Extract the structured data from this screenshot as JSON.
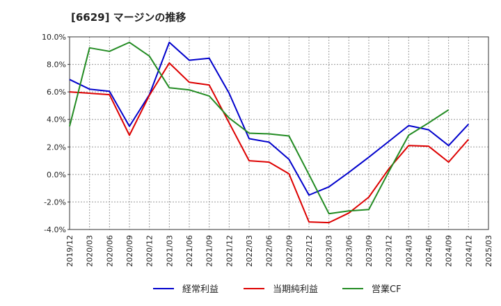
{
  "title": "[6629]  マージンの推移",
  "chart_data": {
    "type": "line",
    "title": "[6629]  マージンの推移",
    "x": [
      "2019/12",
      "2020/03",
      "2020/06",
      "2020/09",
      "2020/12",
      "2021/03",
      "2021/06",
      "2021/09",
      "2021/12",
      "2022/03",
      "2022/06",
      "2022/09",
      "2022/12",
      "2023/03",
      "2023/06",
      "2023/09",
      "2023/12",
      "2024/03",
      "2024/06",
      "2024/09",
      "2024/12",
      "2025/03"
    ],
    "ylim": [
      -4.0,
      10.0
    ],
    "yticks": [
      -4.0,
      -2.0,
      0.0,
      2.0,
      4.0,
      6.0,
      8.0,
      10.0
    ],
    "ytick_labels": [
      "-4.0%",
      "-2.0%",
      "0.0%",
      "2.0%",
      "4.0%",
      "6.0%",
      "8.0%",
      "10.0%"
    ],
    "grid": true,
    "legend_position": "bottom",
    "series": [
      {
        "name": "経常利益",
        "color": "#0000cc",
        "values": [
          6.9,
          6.2,
          6.05,
          3.5,
          5.8,
          9.6,
          8.3,
          8.45,
          5.9,
          2.6,
          2.35,
          1.1,
          -1.5,
          -0.9,
          0.15,
          1.25,
          2.4,
          3.55,
          3.25,
          2.1,
          3.65,
          null
        ]
      },
      {
        "name": "当期純利益",
        "color": "#dd0000",
        "values": [
          6.0,
          5.9,
          5.8,
          2.85,
          5.75,
          8.1,
          6.7,
          6.5,
          3.75,
          1.0,
          0.9,
          0.05,
          -3.45,
          -3.5,
          -2.8,
          -1.65,
          0.4,
          2.1,
          2.05,
          0.9,
          2.55,
          null
        ]
      },
      {
        "name": "営業CF",
        "color": "#228b22",
        "values": [
          3.5,
          9.2,
          8.95,
          9.6,
          8.6,
          6.3,
          6.15,
          5.7,
          4.1,
          3.0,
          2.95,
          2.8,
          0.0,
          -2.85,
          -2.65,
          -2.55,
          0.2,
          2.85,
          3.75,
          4.7,
          null,
          null
        ]
      }
    ]
  }
}
